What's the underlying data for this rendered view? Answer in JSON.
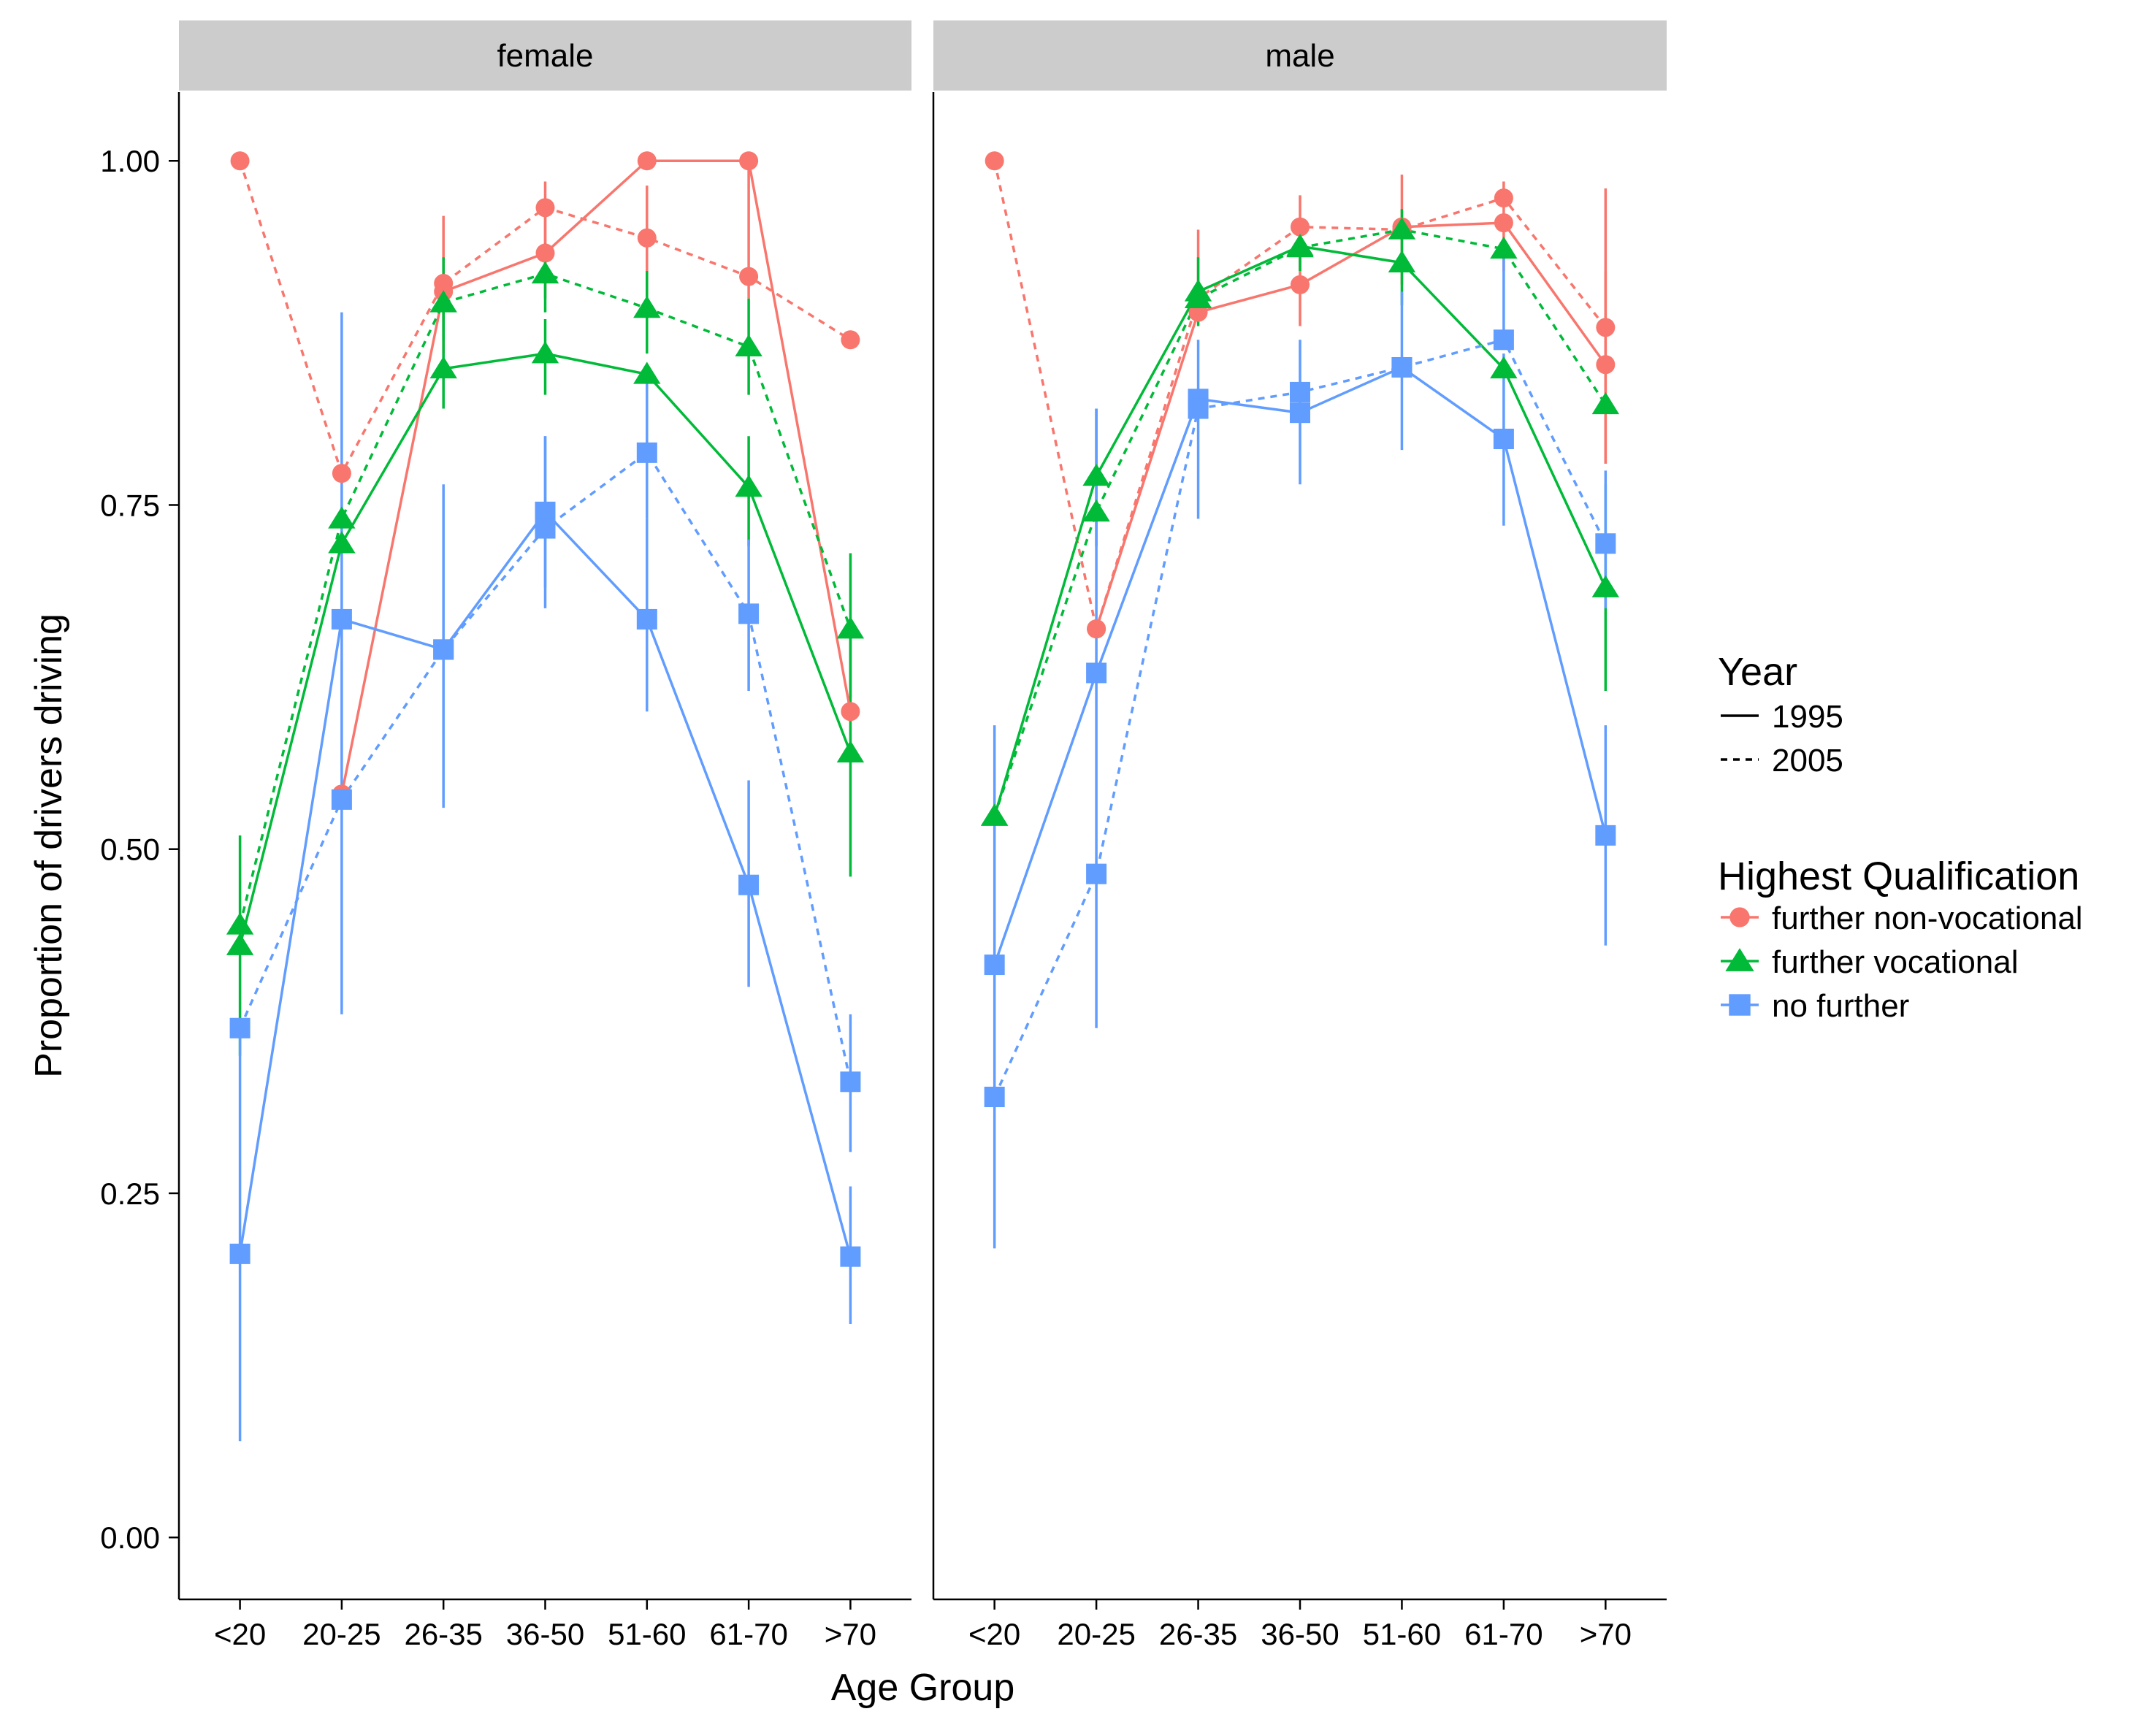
{
  "chart_data": {
    "type": "line",
    "xlabel": "Age Group",
    "ylabel": "Proportion of drivers driving",
    "categories": [
      "<20",
      "20-25",
      "26-35",
      "36-50",
      "51-60",
      "61-70",
      ">70"
    ],
    "ylim": [
      -0.045,
      1.05
    ],
    "yticks": [
      0.0,
      0.25,
      0.5,
      0.75,
      1.0
    ],
    "ytick_labels": [
      "0.00",
      "0.25",
      "0.50",
      "0.75",
      "1.00"
    ],
    "facets": [
      "female",
      "male"
    ],
    "legend": {
      "position": "right",
      "linetype_title": "Year",
      "linetypes": [
        {
          "label": "1995",
          "dash": "solid"
        },
        {
          "label": "2005",
          "dash": "dashed"
        }
      ],
      "color_title": "Highest Qualification",
      "groups": [
        {
          "label": "further non-vocational",
          "color": "#F8766D",
          "shape": "circle"
        },
        {
          "label": "further vocational",
          "color": "#00BA38",
          "shape": "triangle"
        },
        {
          "label": "no further",
          "color": "#619CFF",
          "shape": "square"
        }
      ]
    },
    "series": [
      {
        "facet": "female",
        "group": "further non-vocational",
        "year": "1995",
        "values": [
          null,
          0.54,
          0.905,
          0.933,
          1.0,
          1.0,
          0.6
        ],
        "lower": [
          null,
          null,
          0.86,
          0.9,
          null,
          0.9,
          null
        ],
        "upper": [
          null,
          null,
          0.96,
          0.97,
          null,
          1.0,
          null
        ]
      },
      {
        "facet": "female",
        "group": "further non-vocational",
        "year": "2005",
        "values": [
          1.0,
          0.773,
          0.911,
          0.966,
          0.944,
          0.916,
          0.87
        ],
        "lower": [
          null,
          null,
          null,
          0.94,
          0.9,
          null,
          null
        ],
        "upper": [
          null,
          null,
          null,
          0.985,
          0.982,
          null,
          null
        ]
      },
      {
        "facet": "female",
        "group": "further vocational",
        "year": "1995",
        "values": [
          0.43,
          0.722,
          0.849,
          0.86,
          0.845,
          0.763,
          0.57
        ],
        "lower": [
          0.35,
          null,
          0.82,
          0.83,
          null,
          0.72,
          0.48
        ],
        "upper": [
          0.51,
          null,
          0.89,
          0.885,
          null,
          0.8,
          0.66
        ]
      },
      {
        "facet": "female",
        "group": "further vocational",
        "year": "2005",
        "values": [
          0.445,
          0.74,
          0.897,
          0.918,
          0.893,
          0.865,
          0.66
        ],
        "lower": [
          null,
          null,
          0.87,
          0.89,
          0.86,
          0.83,
          0.61
        ],
        "upper": [
          null,
          null,
          0.93,
          0.94,
          0.92,
          0.9,
          0.715
        ]
      },
      {
        "facet": "female",
        "group": "no further",
        "year": "1995",
        "values": [
          0.206,
          0.667,
          0.645,
          0.745,
          0.667,
          0.474,
          0.204
        ],
        "lower": [
          0.07,
          0.38,
          0.53,
          0.69,
          0.6,
          0.4,
          0.155
        ],
        "upper": [
          0.37,
          0.89,
          0.765,
          0.8,
          0.74,
          0.55,
          0.255
        ]
      },
      {
        "facet": "female",
        "group": "no further",
        "year": "2005",
        "values": [
          0.37,
          0.536,
          0.645,
          0.733,
          0.788,
          0.671,
          0.331
        ],
        "lower": [
          null,
          null,
          null,
          0.675,
          0.74,
          0.615,
          0.28
        ],
        "upper": [
          null,
          null,
          null,
          0.8,
          0.84,
          0.725,
          0.38
        ]
      },
      {
        "facet": "male",
        "group": "further non-vocational",
        "year": "1995",
        "values": [
          null,
          0.66,
          0.89,
          0.91,
          0.952,
          0.955,
          0.852
        ],
        "lower": [
          null,
          null,
          null,
          0.88,
          0.91,
          0.92,
          0.78
        ],
        "upper": [
          null,
          null,
          null,
          0.94,
          0.99,
          0.985,
          0.92
        ]
      },
      {
        "facet": "male",
        "group": "further non-vocational",
        "year": "2005",
        "values": [
          1.0,
          0.66,
          0.9,
          0.952,
          0.95,
          0.973,
          0.879
        ],
        "lower": [
          null,
          null,
          null,
          0.92,
          null,
          null,
          0.78
        ],
        "upper": [
          null,
          null,
          0.95,
          0.975,
          null,
          null,
          0.98
        ]
      },
      {
        "facet": "male",
        "group": "further vocational",
        "year": "1995",
        "values": [
          0.524,
          0.771,
          0.905,
          0.938,
          0.926,
          0.849,
          0.69
        ],
        "lower": [
          null,
          0.72,
          0.88,
          0.92,
          0.895,
          null,
          0.615
        ],
        "upper": [
          null,
          0.82,
          0.93,
          0.955,
          0.955,
          null,
          0.765
        ]
      },
      {
        "facet": "male",
        "group": "further vocational",
        "year": "2005",
        "values": [
          0.524,
          0.745,
          0.9,
          0.937,
          0.95,
          0.936,
          0.823
        ],
        "lower": [
          null,
          null,
          null,
          null,
          null,
          null,
          null
        ],
        "upper": [
          null,
          null,
          null,
          null,
          0.965,
          null,
          null
        ]
      },
      {
        "facet": "male",
        "group": "no further",
        "year": "1995",
        "values": [
          0.416,
          0.628,
          0.827,
          0.817,
          0.85,
          0.798,
          0.51
        ],
        "lower": [
          0.21,
          0.37,
          0.74,
          0.765,
          0.79,
          0.735,
          0.43
        ],
        "upper": [
          0.59,
          0.82,
          0.87,
          0.87,
          0.905,
          0.86,
          0.59
        ]
      },
      {
        "facet": "male",
        "group": "no further",
        "year": "2005",
        "values": [
          0.32,
          0.482,
          0.82,
          0.832,
          0.85,
          0.87,
          0.722
        ],
        "lower": [
          null,
          null,
          null,
          null,
          null,
          null,
          0.675
        ],
        "upper": [
          null,
          null,
          null,
          null,
          null,
          0.93,
          0.775
        ]
      }
    ]
  }
}
